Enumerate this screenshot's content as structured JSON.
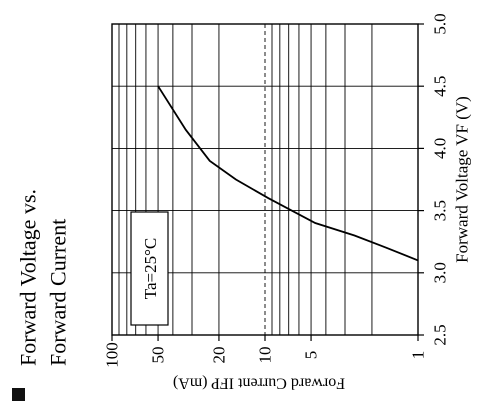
{
  "chart_data": {
    "type": "line",
    "title": "Forward Voltage vs.\nForward Current",
    "title_lines": [
      "Forward Voltage vs.",
      "Forward Current"
    ],
    "xlabel": "Forward Voltage  VF (V)",
    "ylabel": "Forward Current  IFP (mA)",
    "x_scale": "linear",
    "y_scale": "log",
    "xlim": [
      2.5,
      5.0
    ],
    "ylim": [
      1,
      100
    ],
    "x_ticks": [
      2.5,
      3.0,
      3.5,
      4.0,
      4.5,
      5.0
    ],
    "x_tick_labels": [
      "2.5",
      "3.0",
      "3.5",
      "4.0",
      "4.5",
      "5.0"
    ],
    "y_ticks": [
      1,
      5,
      10,
      20,
      50,
      100
    ],
    "y_tick_labels": [
      "1",
      "5",
      "10",
      "20",
      "50",
      "100"
    ],
    "grid": true,
    "annotation": "Ta=25°C",
    "series": [
      {
        "x": [
          3.1,
          3.2,
          3.3,
          3.4,
          3.6,
          3.75,
          3.9,
          4.15,
          4.5
        ],
        "y": [
          1,
          1.6,
          2.6,
          4.7,
          9.5,
          15.5,
          23,
          33,
          50
        ]
      }
    ]
  }
}
